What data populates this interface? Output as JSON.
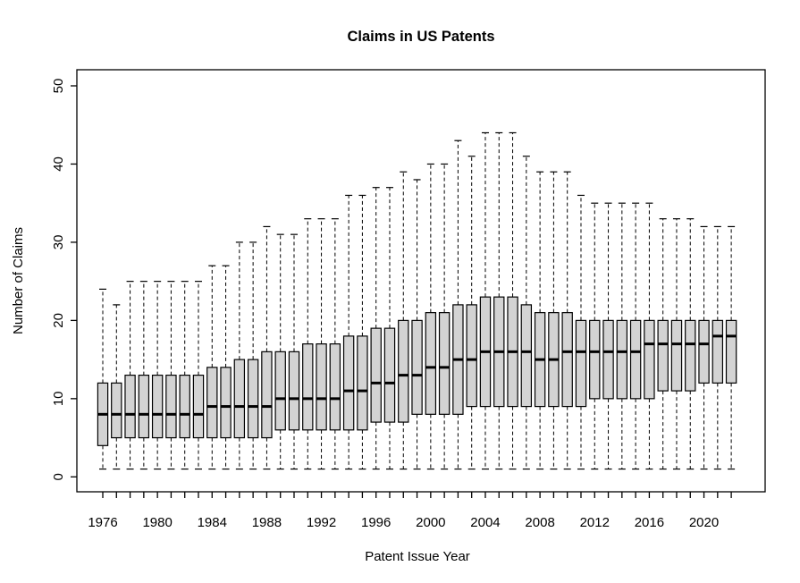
{
  "chart_data": {
    "type": "boxplot",
    "title": "Claims in US Patents",
    "xlabel": "Patent Issue Year",
    "ylabel": "Number of Claims",
    "ylim": [
      0,
      50
    ],
    "yticks": [
      0,
      10,
      20,
      30,
      40,
      50
    ],
    "xtick_labels": [
      "1976",
      "1980",
      "1984",
      "1988",
      "1992",
      "1996",
      "2000",
      "2004",
      "2008",
      "2012",
      "2016",
      "2020"
    ],
    "xtick_label_interval": 4,
    "grid": false,
    "legend": "none",
    "style": {
      "box_fill": "#d3d3d3",
      "stroke_color": "#000000",
      "median_color": "#000000",
      "background": "#ffffff",
      "whisker_line": "dashed"
    },
    "boxes": [
      {
        "year": 1976,
        "whisker_low": 1,
        "q1": 4,
        "median": 8,
        "q3": 12,
        "whisker_high": 24
      },
      {
        "year": 1977,
        "whisker_low": 1,
        "q1": 5,
        "median": 8,
        "q3": 12,
        "whisker_high": 22
      },
      {
        "year": 1978,
        "whisker_low": 1,
        "q1": 5,
        "median": 8,
        "q3": 13,
        "whisker_high": 25
      },
      {
        "year": 1979,
        "whisker_low": 1,
        "q1": 5,
        "median": 8,
        "q3": 13,
        "whisker_high": 25
      },
      {
        "year": 1980,
        "whisker_low": 1,
        "q1": 5,
        "median": 8,
        "q3": 13,
        "whisker_high": 25
      },
      {
        "year": 1981,
        "whisker_low": 1,
        "q1": 5,
        "median": 8,
        "q3": 13,
        "whisker_high": 25
      },
      {
        "year": 1982,
        "whisker_low": 1,
        "q1": 5,
        "median": 8,
        "q3": 13,
        "whisker_high": 25
      },
      {
        "year": 1983,
        "whisker_low": 1,
        "q1": 5,
        "median": 8,
        "q3": 13,
        "whisker_high": 25
      },
      {
        "year": 1984,
        "whisker_low": 1,
        "q1": 5,
        "median": 9,
        "q3": 14,
        "whisker_high": 27
      },
      {
        "year": 1985,
        "whisker_low": 1,
        "q1": 5,
        "median": 9,
        "q3": 14,
        "whisker_high": 27
      },
      {
        "year": 1986,
        "whisker_low": 1,
        "q1": 5,
        "median": 9,
        "q3": 15,
        "whisker_high": 30
      },
      {
        "year": 1987,
        "whisker_low": 1,
        "q1": 5,
        "median": 9,
        "q3": 15,
        "whisker_high": 30
      },
      {
        "year": 1988,
        "whisker_low": 1,
        "q1": 5,
        "median": 9,
        "q3": 16,
        "whisker_high": 32
      },
      {
        "year": 1989,
        "whisker_low": 1,
        "q1": 6,
        "median": 10,
        "q3": 16,
        "whisker_high": 31
      },
      {
        "year": 1990,
        "whisker_low": 1,
        "q1": 6,
        "median": 10,
        "q3": 16,
        "whisker_high": 31
      },
      {
        "year": 1991,
        "whisker_low": 1,
        "q1": 6,
        "median": 10,
        "q3": 17,
        "whisker_high": 33
      },
      {
        "year": 1992,
        "whisker_low": 1,
        "q1": 6,
        "median": 10,
        "q3": 17,
        "whisker_high": 33
      },
      {
        "year": 1993,
        "whisker_low": 1,
        "q1": 6,
        "median": 10,
        "q3": 17,
        "whisker_high": 33
      },
      {
        "year": 1994,
        "whisker_low": 1,
        "q1": 6,
        "median": 11,
        "q3": 18,
        "whisker_high": 36
      },
      {
        "year": 1995,
        "whisker_low": 1,
        "q1": 6,
        "median": 11,
        "q3": 18,
        "whisker_high": 36
      },
      {
        "year": 1996,
        "whisker_low": 1,
        "q1": 7,
        "median": 12,
        "q3": 19,
        "whisker_high": 37
      },
      {
        "year": 1997,
        "whisker_low": 1,
        "q1": 7,
        "median": 12,
        "q3": 19,
        "whisker_high": 37
      },
      {
        "year": 1998,
        "whisker_low": 1,
        "q1": 7,
        "median": 13,
        "q3": 20,
        "whisker_high": 39
      },
      {
        "year": 1999,
        "whisker_low": 1,
        "q1": 8,
        "median": 13,
        "q3": 20,
        "whisker_high": 38
      },
      {
        "year": 2000,
        "whisker_low": 1,
        "q1": 8,
        "median": 14,
        "q3": 21,
        "whisker_high": 40
      },
      {
        "year": 2001,
        "whisker_low": 1,
        "q1": 8,
        "median": 14,
        "q3": 21,
        "whisker_high": 40
      },
      {
        "year": 2002,
        "whisker_low": 1,
        "q1": 8,
        "median": 15,
        "q3": 22,
        "whisker_high": 43
      },
      {
        "year": 2003,
        "whisker_low": 1,
        "q1": 9,
        "median": 15,
        "q3": 22,
        "whisker_high": 41
      },
      {
        "year": 2004,
        "whisker_low": 1,
        "q1": 9,
        "median": 16,
        "q3": 23,
        "whisker_high": 44
      },
      {
        "year": 2005,
        "whisker_low": 1,
        "q1": 9,
        "median": 16,
        "q3": 23,
        "whisker_high": 44
      },
      {
        "year": 2006,
        "whisker_low": 1,
        "q1": 9,
        "median": 16,
        "q3": 23,
        "whisker_high": 44
      },
      {
        "year": 2007,
        "whisker_low": 1,
        "q1": 9,
        "median": 16,
        "q3": 22,
        "whisker_high": 41
      },
      {
        "year": 2008,
        "whisker_low": 1,
        "q1": 9,
        "median": 15,
        "q3": 21,
        "whisker_high": 39
      },
      {
        "year": 2009,
        "whisker_low": 1,
        "q1": 9,
        "median": 15,
        "q3": 21,
        "whisker_high": 39
      },
      {
        "year": 2010,
        "whisker_low": 1,
        "q1": 9,
        "median": 16,
        "q3": 21,
        "whisker_high": 39
      },
      {
        "year": 2011,
        "whisker_low": 1,
        "q1": 9,
        "median": 16,
        "q3": 20,
        "whisker_high": 36
      },
      {
        "year": 2012,
        "whisker_low": 1,
        "q1": 10,
        "median": 16,
        "q3": 20,
        "whisker_high": 35
      },
      {
        "year": 2013,
        "whisker_low": 1,
        "q1": 10,
        "median": 16,
        "q3": 20,
        "whisker_high": 35
      },
      {
        "year": 2014,
        "whisker_low": 1,
        "q1": 10,
        "median": 16,
        "q3": 20,
        "whisker_high": 35
      },
      {
        "year": 2015,
        "whisker_low": 1,
        "q1": 10,
        "median": 16,
        "q3": 20,
        "whisker_high": 35
      },
      {
        "year": 2016,
        "whisker_low": 1,
        "q1": 10,
        "median": 17,
        "q3": 20,
        "whisker_high": 35
      },
      {
        "year": 2017,
        "whisker_low": 1,
        "q1": 11,
        "median": 17,
        "q3": 20,
        "whisker_high": 33
      },
      {
        "year": 2018,
        "whisker_low": 1,
        "q1": 11,
        "median": 17,
        "q3": 20,
        "whisker_high": 33
      },
      {
        "year": 2019,
        "whisker_low": 1,
        "q1": 11,
        "median": 17,
        "q3": 20,
        "whisker_high": 33
      },
      {
        "year": 2020,
        "whisker_low": 1,
        "q1": 12,
        "median": 17,
        "q3": 20,
        "whisker_high": 32
      },
      {
        "year": 2021,
        "whisker_low": 1,
        "q1": 12,
        "median": 18,
        "q3": 20,
        "whisker_high": 32
      },
      {
        "year": 2022,
        "whisker_low": 1,
        "q1": 12,
        "median": 18,
        "q3": 20,
        "whisker_high": 32
      }
    ]
  }
}
